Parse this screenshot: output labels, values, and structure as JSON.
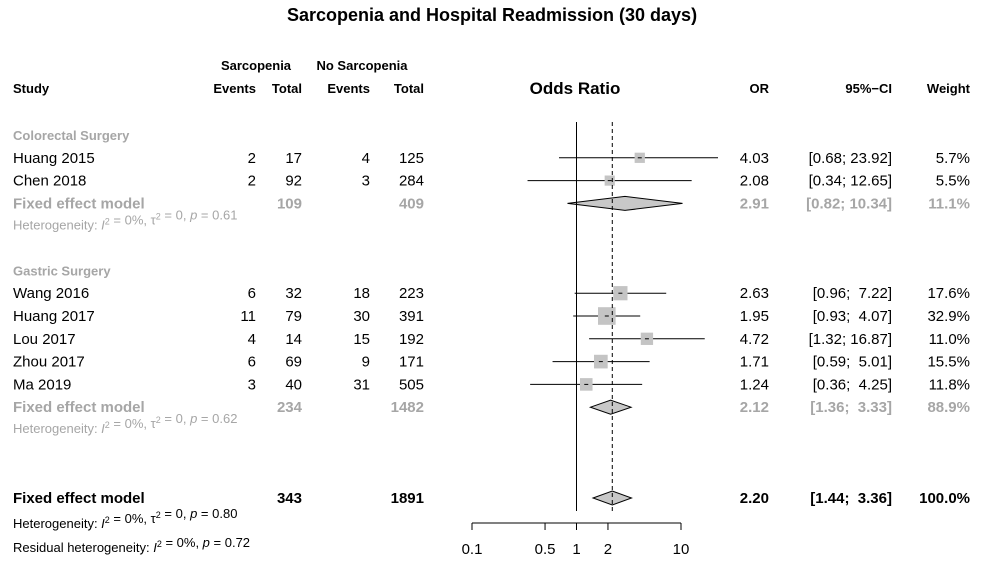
{
  "title": "Sarcopenia and Hospital Readmission (30 days)",
  "headers": {
    "study": "Study",
    "group1": "Sarcopenia",
    "group2": "No Sarcopenia",
    "events": "Events",
    "total": "Total",
    "plot": "Odds Ratio",
    "or": "OR",
    "ci": "95%−CI",
    "weight": "Weight"
  },
  "colors": {
    "ink": "#000000",
    "subgroup": "#a6a6a6",
    "diamond_fill": "#c8c8c8",
    "box": "#c4c4c4"
  },
  "chart_data": {
    "type": "forest",
    "measure": "Odds Ratio",
    "x_scale": "log",
    "xlim": [
      0.1,
      10
    ],
    "x_ticks": [
      "0.1",
      "0.5",
      "1",
      "2",
      "10"
    ],
    "x_tick_values": [
      0.1,
      0.5,
      1,
      2,
      10
    ],
    "null_value": 1,
    "pooled_reference": 2.2,
    "groups": [
      {
        "name": "Colorectal Surgery",
        "studies": [
          {
            "study": "Huang 2015",
            "e1": "2",
            "n1": "17",
            "e2": "4",
            "n2": "125",
            "or": 4.03,
            "lower": 0.68,
            "upper": 23.92,
            "or_text": "4.03",
            "ci_text": "[0.68; 23.92]",
            "weight": 5.7,
            "weight_text": "5.7%"
          },
          {
            "study": "Chen 2018",
            "e1": "2",
            "n1": "92",
            "e2": "3",
            "n2": "284",
            "or": 2.08,
            "lower": 0.34,
            "upper": 12.65,
            "or_text": "2.08",
            "ci_text": "[0.34; 12.65]",
            "weight": 5.5,
            "weight_text": "5.5%"
          }
        ],
        "fixed": {
          "label": "Fixed effect model",
          "n1": "109",
          "n2": "409",
          "or": 2.91,
          "lower": 0.82,
          "upper": 10.34,
          "or_text": "2.91",
          "ci_text": "[0.82; 10.34]",
          "weight_text": "11.1%"
        },
        "heterogeneity": {
          "prefix": "Heterogeneity: ",
          "i2_symbol": "I",
          "i2": " = 0%, ",
          "tau_symbol": "τ",
          "tau": " = 0, ",
          "p_symbol": "p",
          "p": " = 0.61"
        }
      },
      {
        "name": "Gastric Surgery",
        "studies": [
          {
            "study": "Wang  2016",
            "e1": "6",
            "n1": "32",
            "e2": "18",
            "n2": "223",
            "or": 2.63,
            "lower": 0.96,
            "upper": 7.22,
            "or_text": "2.63",
            "ci_text": "[0.96;  7.22]",
            "weight": 17.6,
            "weight_text": "17.6%"
          },
          {
            "study": "Huang 2017",
            "e1": "11",
            "n1": "79",
            "e2": "30",
            "n2": "391",
            "or": 1.95,
            "lower": 0.93,
            "upper": 4.07,
            "or_text": "1.95",
            "ci_text": "[0.93;  4.07]",
            "weight": 32.9,
            "weight_text": "32.9%"
          },
          {
            "study": "Lou 2017",
            "e1": "4",
            "n1": "14",
            "e2": "15",
            "n2": "192",
            "or": 4.72,
            "lower": 1.32,
            "upper": 16.87,
            "or_text": "4.72",
            "ci_text": "[1.32; 16.87]",
            "weight": 11.0,
            "weight_text": "11.0%"
          },
          {
            "study": "Zhou 2017",
            "e1": "6",
            "n1": "69",
            "e2": "9",
            "n2": "171",
            "or": 1.71,
            "lower": 0.59,
            "upper": 5.01,
            "or_text": "1.71",
            "ci_text": "[0.59;  5.01]",
            "weight": 15.5,
            "weight_text": "15.5%"
          },
          {
            "study": "Ma 2019",
            "e1": "3",
            "n1": "40",
            "e2": "31",
            "n2": "505",
            "or": 1.24,
            "lower": 0.36,
            "upper": 4.25,
            "or_text": "1.24",
            "ci_text": "[0.36;  4.25]",
            "weight": 11.8,
            "weight_text": "11.8%"
          }
        ],
        "fixed": {
          "label": "Fixed effect model",
          "n1": "234",
          "n2": "1482",
          "or": 2.12,
          "lower": 1.36,
          "upper": 3.33,
          "or_text": "2.12",
          "ci_text": "[1.36;  3.33]",
          "weight_text": "88.9%"
        },
        "heterogeneity": {
          "prefix": "Heterogeneity: ",
          "i2_symbol": "I",
          "i2": " = 0%, ",
          "tau_symbol": "τ",
          "tau": " = 0, ",
          "p_symbol": "p",
          "p": " = 0.62"
        }
      }
    ],
    "overall": {
      "label": "Fixed effect model",
      "n1": "343",
      "n2": "1891",
      "or": 2.2,
      "lower": 1.44,
      "upper": 3.36,
      "or_text": "2.20",
      "ci_text": "[1.44;  3.36]",
      "weight_text": "100.0%",
      "heterogeneity": {
        "prefix": "Heterogeneity: ",
        "i2_symbol": "I",
        "i2": " = 0%, ",
        "tau_symbol": "τ",
        "tau": " = 0, ",
        "p_symbol": "p",
        "p": " = 0.80"
      },
      "residual": {
        "prefix": "Residual heterogeneity: ",
        "i2_symbol": "I",
        "i2": " = 0%, ",
        "p_symbol": "p",
        "p": " = 0.72"
      }
    }
  }
}
